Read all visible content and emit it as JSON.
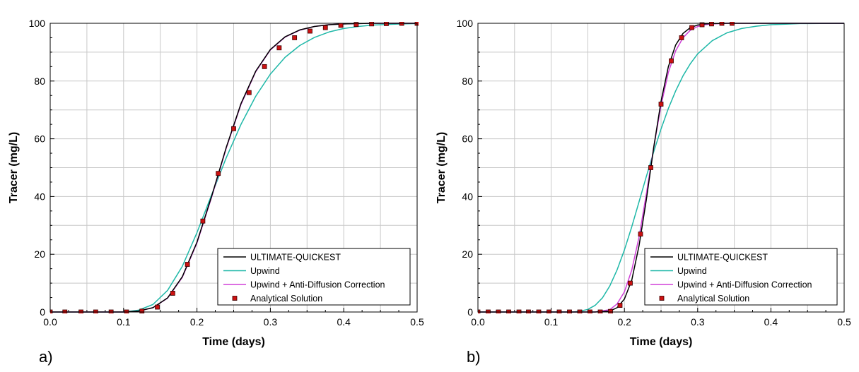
{
  "chart_data": [
    {
      "type": "line",
      "panel_label": "a)",
      "xlabel": "Time (days)",
      "ylabel": "Tracer (mg/L)",
      "xlim": [
        0,
        0.5
      ],
      "ylim": [
        0,
        100
      ],
      "xticks": [
        "0.0",
        "0.1",
        "0.2",
        "0.3",
        "0.4",
        "0.5"
      ],
      "yticks": [
        "0",
        "20",
        "40",
        "60",
        "80",
        "100"
      ],
      "grid": true,
      "legend_position": "bottom-right",
      "colors": {
        "ultimate": "#000000",
        "upwind": "#1fb8a8",
        "anti": "#d040d8",
        "analytical": "#cc1111"
      },
      "series": [
        {
          "name": "ULTIMATE-QUICKEST",
          "style": "line",
          "color": "#000000",
          "x": [
            0,
            0.1,
            0.12,
            0.14,
            0.16,
            0.18,
            0.2,
            0.22,
            0.24,
            0.26,
            0.28,
            0.3,
            0.32,
            0.34,
            0.36,
            0.38,
            0.4,
            0.42,
            0.44,
            0.46,
            0.48,
            0.5
          ],
          "y": [
            0,
            0,
            0.3,
            1.5,
            4.9,
            12.2,
            24.2,
            40.1,
            57.1,
            72.2,
            83.4,
            90.9,
            95.3,
            97.7,
            98.9,
            99.5,
            99.8,
            99.9,
            100,
            100,
            100,
            100
          ]
        },
        {
          "name": "Upwind",
          "style": "line",
          "color": "#1fb8a8",
          "x": [
            0,
            0.1,
            0.12,
            0.14,
            0.16,
            0.18,
            0.2,
            0.22,
            0.24,
            0.26,
            0.28,
            0.3,
            0.32,
            0.34,
            0.36,
            0.38,
            0.4,
            0.42,
            0.44,
            0.46,
            0.48,
            0.5
          ],
          "y": [
            0,
            0,
            0.6,
            2.6,
            7.5,
            15.8,
            27.5,
            40.6,
            53.5,
            65.0,
            74.7,
            82.4,
            88.2,
            92.3,
            95.1,
            97.0,
            98.2,
            98.9,
            99.4,
            99.6,
            99.8,
            99.9
          ]
        },
        {
          "name": "Upwind + Anti-Diffusion Correction",
          "style": "line",
          "color": "#d040d8",
          "x": [
            0,
            0.1,
            0.12,
            0.14,
            0.16,
            0.18,
            0.2,
            0.22,
            0.24,
            0.26,
            0.28,
            0.3,
            0.32,
            0.34,
            0.36,
            0.38,
            0.4,
            0.42,
            0.44,
            0.46,
            0.48,
            0.5
          ],
          "y": [
            0,
            0,
            0.3,
            1.5,
            4.8,
            12.0,
            23.9,
            39.8,
            56.8,
            71.9,
            83.2,
            90.8,
            95.2,
            97.6,
            98.9,
            99.5,
            99.8,
            99.9,
            100,
            100,
            100,
            100
          ]
        },
        {
          "name": "Analytical Solution",
          "style": "marker",
          "color": "#cc1111",
          "x": [
            0,
            0.02,
            0.042,
            0.062,
            0.083,
            0.104,
            0.125,
            0.146,
            0.167,
            0.187,
            0.208,
            0.229,
            0.25,
            0.271,
            0.292,
            0.312,
            0.333,
            0.354,
            0.375,
            0.396,
            0.417,
            0.438,
            0.458,
            0.479,
            0.5
          ],
          "y": [
            0,
            0,
            0,
            0,
            0,
            0,
            0.3,
            1.7,
            6.5,
            16.5,
            31.5,
            48,
            63.5,
            76,
            85,
            91.5,
            95,
            97.3,
            98.5,
            99.3,
            99.6,
            99.8,
            99.9,
            100,
            100
          ]
        }
      ]
    },
    {
      "type": "line",
      "panel_label": "b)",
      "xlabel": "Time (days)",
      "ylabel": "Tracer (mg/L)",
      "xlim": [
        0,
        0.5
      ],
      "ylim": [
        0,
        100
      ],
      "xticks": [
        "0.0",
        "0.1",
        "0.2",
        "0.3",
        "0.4",
        "0.5"
      ],
      "yticks": [
        "0",
        "20",
        "40",
        "60",
        "80",
        "100"
      ],
      "grid": true,
      "legend_position": "bottom-right",
      "colors": {
        "ultimate": "#000000",
        "upwind": "#1fb8a8",
        "anti": "#d040d8",
        "analytical": "#cc1111"
      },
      "series": [
        {
          "name": "ULTIMATE-QUICKEST",
          "style": "line",
          "color": "#000000",
          "x": [
            0,
            0.16,
            0.18,
            0.19,
            0.2,
            0.21,
            0.22,
            0.23,
            0.24,
            0.25,
            0.26,
            0.27,
            0.28,
            0.29,
            0.3,
            0.31,
            0.32,
            0.34,
            0.36,
            0.5
          ],
          "y": [
            0,
            0,
            0.3,
            1.5,
            4.5,
            11,
            23,
            39,
            57,
            73,
            85,
            92.5,
            96.5,
            98.5,
            99.4,
            99.8,
            99.9,
            100,
            100,
            100
          ]
        },
        {
          "name": "Upwind",
          "style": "line",
          "color": "#1fb8a8",
          "x": [
            0,
            0.13,
            0.14,
            0.15,
            0.16,
            0.17,
            0.18,
            0.19,
            0.2,
            0.21,
            0.22,
            0.23,
            0.24,
            0.25,
            0.26,
            0.27,
            0.28,
            0.29,
            0.3,
            0.32,
            0.34,
            0.36,
            0.38,
            0.4,
            0.42,
            0.44,
            0.5
          ],
          "y": [
            0,
            0,
            0.3,
            0.9,
            2.3,
            4.9,
            9.0,
            14.6,
            21.5,
            29.5,
            38.2,
            47.0,
            55.5,
            63.4,
            70.5,
            76.6,
            81.8,
            86.0,
            89.4,
            94.0,
            96.7,
            98.2,
            99.0,
            99.5,
            99.7,
            99.9,
            100
          ]
        },
        {
          "name": "Upwind + Anti-Diffusion Correction",
          "style": "line",
          "color": "#d040d8",
          "x": [
            0,
            0.16,
            0.18,
            0.19,
            0.2,
            0.21,
            0.22,
            0.23,
            0.24,
            0.25,
            0.26,
            0.27,
            0.28,
            0.29,
            0.3,
            0.31,
            0.32,
            0.34,
            0.36,
            0.5
          ],
          "y": [
            0,
            0,
            0.8,
            2.8,
            7,
            14.5,
            26,
            41,
            57,
            71.5,
            83,
            90.5,
            95,
            97.6,
            98.9,
            99.5,
            99.8,
            100,
            100,
            100
          ]
        },
        {
          "name": "Analytical Solution",
          "style": "marker",
          "color": "#cc1111",
          "x": [
            0,
            0.014,
            0.028,
            0.042,
            0.056,
            0.069,
            0.083,
            0.097,
            0.111,
            0.125,
            0.139,
            0.153,
            0.167,
            0.181,
            0.194,
            0.208,
            0.222,
            0.236,
            0.25,
            0.264,
            0.278,
            0.292,
            0.306,
            0.319,
            0.333,
            0.347
          ],
          "y": [
            0,
            0,
            0,
            0,
            0,
            0,
            0,
            0,
            0,
            0,
            0,
            0,
            0,
            0.2,
            2.3,
            10,
            27,
            50,
            72,
            87,
            95,
            98.5,
            99.5,
            99.8,
            100,
            100
          ]
        }
      ]
    }
  ]
}
